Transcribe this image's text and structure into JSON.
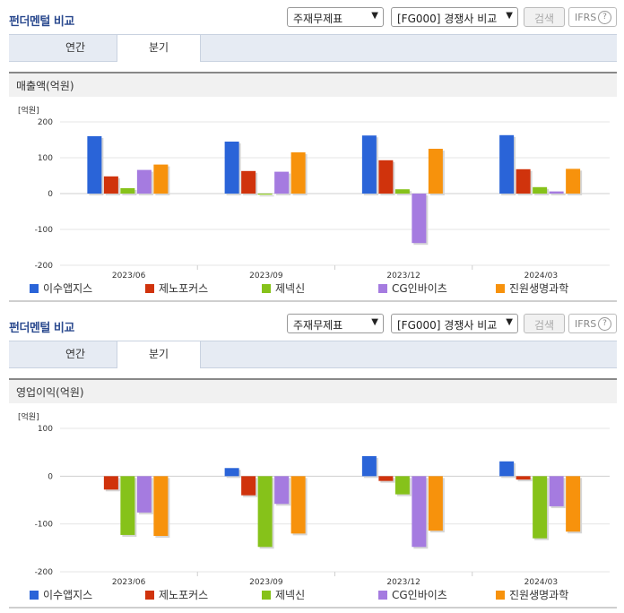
{
  "panels": [
    {
      "header": {
        "title": "펀더멘털 비교",
        "select1": "주재무제표",
        "select2": "[FG000] 경쟁사 비교",
        "search_label": "검색",
        "ifrs_label": "IFRS",
        "help_icon": "?"
      },
      "tabs": [
        {
          "label": "연간",
          "active": false
        },
        {
          "label": "분기",
          "active": true
        }
      ],
      "metric_title": "매출액(억원)"
    },
    {
      "header": {
        "title": "펀더멘털 비교",
        "select1": "주재무제표",
        "select2": "[FG000] 경쟁사 비교",
        "search_label": "검색",
        "ifrs_label": "IFRS",
        "help_icon": "?"
      },
      "tabs": [
        {
          "label": "연간",
          "active": false
        },
        {
          "label": "분기",
          "active": true
        }
      ],
      "metric_title": "영업이익(억원)"
    }
  ],
  "colors": {
    "이수앱지스": "#2a64d8",
    "제노포커스": "#d0330c",
    "제넥신": "#86c21a",
    "CG인바이츠": "#a57be0",
    "진원생명과학": "#f7920c"
  },
  "chart_data": [
    {
      "type": "bar",
      "unit_label": "[억원]",
      "categories": [
        "2023/06",
        "2023/09",
        "2023/12",
        "2024/03"
      ],
      "ylim": [
        -200,
        200
      ],
      "yticks": [
        200,
        100,
        0,
        -100,
        -200
      ],
      "grid": true,
      "legend_position": "bottom",
      "series": [
        {
          "name": "이수앱지스",
          "values": [
            160,
            145,
            162,
            163
          ]
        },
        {
          "name": "제노포커스",
          "values": [
            48,
            63,
            93,
            68
          ]
        },
        {
          "name": "제넥신",
          "values": [
            15,
            -3,
            12,
            18
          ]
        },
        {
          "name": "CG인바이츠",
          "values": [
            66,
            61,
            -138,
            6
          ]
        },
        {
          "name": "진원생명과학",
          "values": [
            81,
            115,
            125,
            69
          ]
        }
      ]
    },
    {
      "type": "bar",
      "unit_label": "[억원]",
      "categories": [
        "2023/06",
        "2023/09",
        "2023/12",
        "2024/03"
      ],
      "ylim": [
        -200,
        100
      ],
      "yticks": [
        100,
        0,
        -100,
        -200
      ],
      "grid": true,
      "legend_position": "bottom",
      "series": [
        {
          "name": "이수앱지스",
          "values": [
            0,
            17,
            42,
            31
          ]
        },
        {
          "name": "제노포커스",
          "values": [
            -28,
            -40,
            -10,
            -7
          ]
        },
        {
          "name": "제넥신",
          "values": [
            -123,
            -148,
            -38,
            -130
          ]
        },
        {
          "name": "CG인바이츠",
          "values": [
            -76,
            -58,
            -148,
            -63
          ]
        },
        {
          "name": "진원생명과학",
          "values": [
            -125,
            -120,
            -114,
            -116
          ]
        }
      ]
    }
  ]
}
